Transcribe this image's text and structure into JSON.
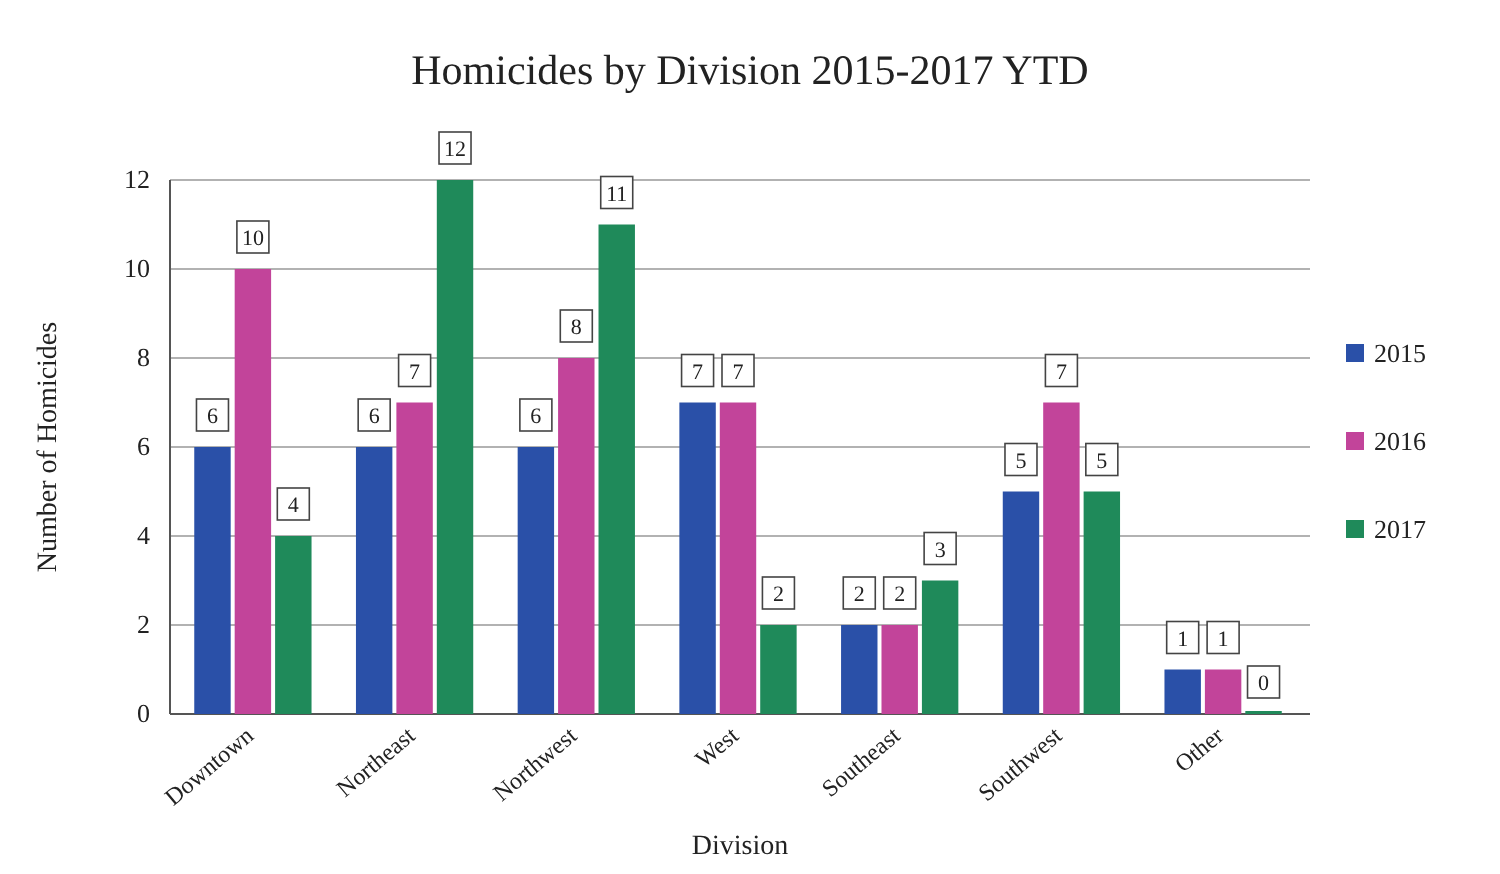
{
  "chart_data": {
    "type": "bar",
    "title": "Homicides by Division 2015-2017 YTD",
    "xlabel": "Division",
    "ylabel": "Number of Homicides",
    "categories": [
      "Downtown",
      "Northeast",
      "Northwest",
      "West",
      "Southeast",
      "Southwest",
      "Other"
    ],
    "series": [
      {
        "name": "2015",
        "color": "#2a50a8",
        "values": [
          6,
          6,
          6,
          7,
          2,
          5,
          1
        ]
      },
      {
        "name": "2016",
        "color": "#c2449a",
        "values": [
          10,
          7,
          8,
          7,
          2,
          7,
          1
        ]
      },
      {
        "name": "2017",
        "color": "#1f8a5a",
        "values": [
          4,
          12,
          11,
          2,
          3,
          5,
          0
        ]
      }
    ],
    "ylim": [
      0,
      12
    ],
    "yticks": [
      0,
      2,
      4,
      6,
      8,
      10,
      12
    ],
    "grid": "y",
    "legend": "right",
    "data_labels": true
  }
}
